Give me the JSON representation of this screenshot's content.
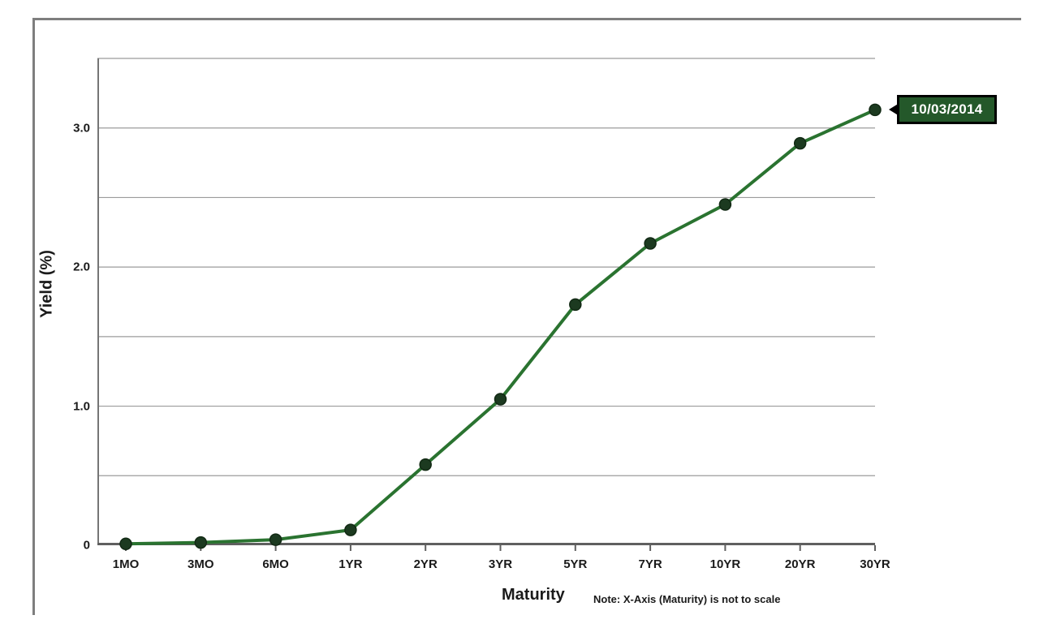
{
  "chart_data": {
    "type": "line",
    "categories": [
      "1MO",
      "3MO",
      "6MO",
      "1YR",
      "2YR",
      "3YR",
      "5YR",
      "7YR",
      "10YR",
      "20YR",
      "30YR"
    ],
    "series": [
      {
        "name": "10/03/2014",
        "values": [
          0.01,
          0.02,
          0.04,
          0.11,
          0.58,
          1.05,
          1.73,
          2.17,
          2.45,
          2.89,
          3.13
        ]
      }
    ],
    "title": "",
    "xlabel": "Maturity",
    "ylabel": "Yield (%)",
    "note": "Note: X-Axis (Maturity) is not to scale",
    "ylim": [
      0,
      3.5
    ],
    "ytick_step": 0.5,
    "yticks": [
      {
        "value": 0,
        "label": "0"
      },
      {
        "value": 1,
        "label": "1.0"
      },
      {
        "value": 2,
        "label": "2.0"
      },
      {
        "value": 3,
        "label": "3.0"
      }
    ],
    "grid": true,
    "legend_position": "none",
    "annotation": {
      "text": "10/03/2014",
      "attached_to": "last-point"
    },
    "colors": {
      "line": "#2a7330",
      "marker": "#1c3a20",
      "marker_edge": "#122914",
      "grid": "#9b9b9b",
      "axis": "#5f5f5f",
      "y_axis": "#757575",
      "text": "#1a1a1a",
      "annotation_bg": "#24582a",
      "annotation_border": "#000000",
      "annotation_text": "#ffffff",
      "frame": "#7e7e7e"
    }
  }
}
